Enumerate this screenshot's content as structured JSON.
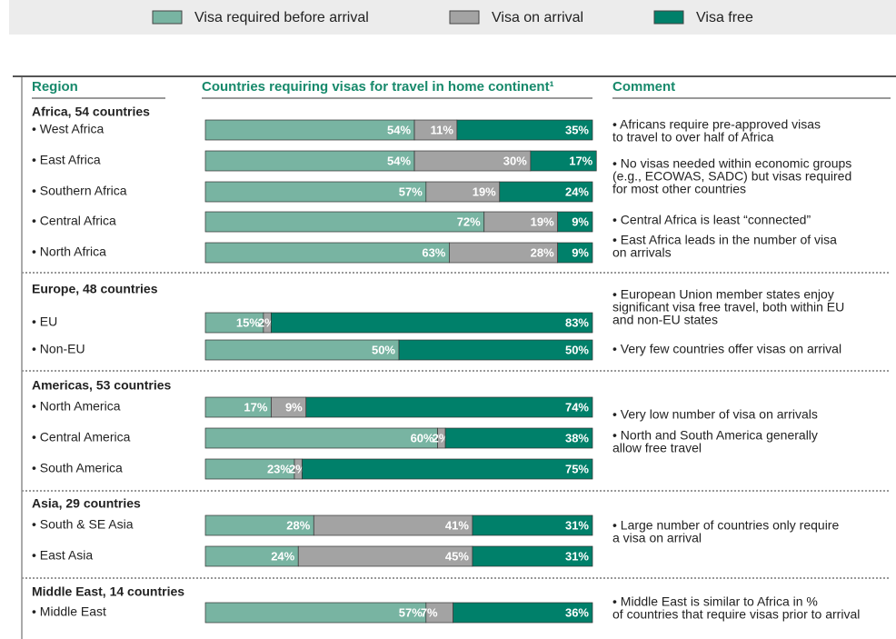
{
  "chart_data": {
    "type": "stacked_bar",
    "orientation": "horizontal",
    "xlim": [
      0,
      100
    ],
    "series": [
      {
        "name": "Visa required before arrival",
        "color": "#78b4a2"
      },
      {
        "name": "Visa on arrival",
        "color": "#a3a3a3"
      },
      {
        "name": "Visa free",
        "color": "#00806a"
      }
    ],
    "columns": {
      "region": "Region",
      "bars": "Countries requiring visas for travel in home continent¹",
      "comment": "Comment"
    },
    "groups": [
      {
        "name": "Africa, 54 countries",
        "rows": [
          {
            "label": "• West Africa",
            "values": [
              54,
              11,
              35
            ],
            "value_labels": [
              "54%",
              "11%",
              "35%"
            ]
          },
          {
            "label": "• East Africa",
            "values": [
              54,
              30,
              17
            ],
            "value_labels": [
              "54%",
              "30%",
              "17%"
            ]
          },
          {
            "label": "• Southern Africa",
            "values": [
              57,
              19,
              24
            ],
            "value_labels": [
              "57%",
              "19%",
              "24%"
            ]
          },
          {
            "label": "• Central Africa",
            "values": [
              72,
              19,
              9
            ],
            "value_labels": [
              "72%",
              "19%",
              "9%"
            ]
          },
          {
            "label": "• North Africa",
            "values": [
              63,
              28,
              9
            ],
            "value_labels": [
              "63%",
              "28%",
              "9%"
            ]
          }
        ],
        "comments": [
          [
            "• Africans require pre-approved visas",
            "to travel to over half of Africa"
          ],
          [
            "• No visas needed within economic groups",
            "(e.g., ECOWAS, SADC) but visas required",
            "for most other countries"
          ],
          [
            "• Central Africa is least “connected”"
          ],
          [
            "• East Africa leads in the number of visa",
            "on arrivals"
          ]
        ]
      },
      {
        "name": "Europe, 48 countries",
        "rows": [
          {
            "label": "• EU",
            "values": [
              15,
              2,
              83
            ],
            "value_labels": [
              "15%",
              "2%",
              "83%"
            ]
          },
          {
            "label": "• Non-EU",
            "values": [
              50,
              null,
              50
            ],
            "value_labels": [
              "50%",
              null,
              "50%"
            ]
          }
        ],
        "comments": [
          [
            "• European Union member states enjoy",
            "significant visa free travel, both within EU",
            "and non-EU states"
          ],
          [
            "• Very few countries offer visas on arrival"
          ]
        ]
      },
      {
        "name": "Americas, 53 countries",
        "rows": [
          {
            "label": "• North America",
            "values": [
              17,
              9,
              74
            ],
            "value_labels": [
              "17%",
              "9%",
              "74%"
            ]
          },
          {
            "label": "• Central America",
            "values": [
              60,
              2,
              38
            ],
            "value_labels": [
              "60%",
              "2%",
              "38%"
            ]
          },
          {
            "label": "• South America",
            "values": [
              23,
              2,
              75
            ],
            "value_labels": [
              "23%",
              "2%",
              "75%"
            ]
          }
        ],
        "comments": [
          [
            "• Very low number of visa on arrivals"
          ],
          [
            "• North and South America generally",
            "allow free travel"
          ]
        ]
      },
      {
        "name": "Asia,  29 countries",
        "rows": [
          {
            "label": "• South & SE Asia",
            "values": [
              28,
              41,
              31
            ],
            "value_labels": [
              "28%",
              "41%",
              "31%"
            ]
          },
          {
            "label": "• East Asia",
            "values": [
              24,
              45,
              31
            ],
            "value_labels": [
              "24%",
              "45%",
              "31%"
            ]
          }
        ],
        "comments": [
          [
            "• Large number of countries only require",
            "a visa on arrival"
          ]
        ]
      },
      {
        "name": "Middle East, 14 countries",
        "rows": [
          {
            "label": "• Middle East",
            "values": [
              57,
              7,
              36
            ],
            "value_labels": [
              "57%",
              "7%",
              "36%"
            ]
          }
        ],
        "comments": [
          [
            "• Middle East is similar to Africa in %",
            "of countries that require visas prior to arrival"
          ]
        ]
      }
    ]
  }
}
